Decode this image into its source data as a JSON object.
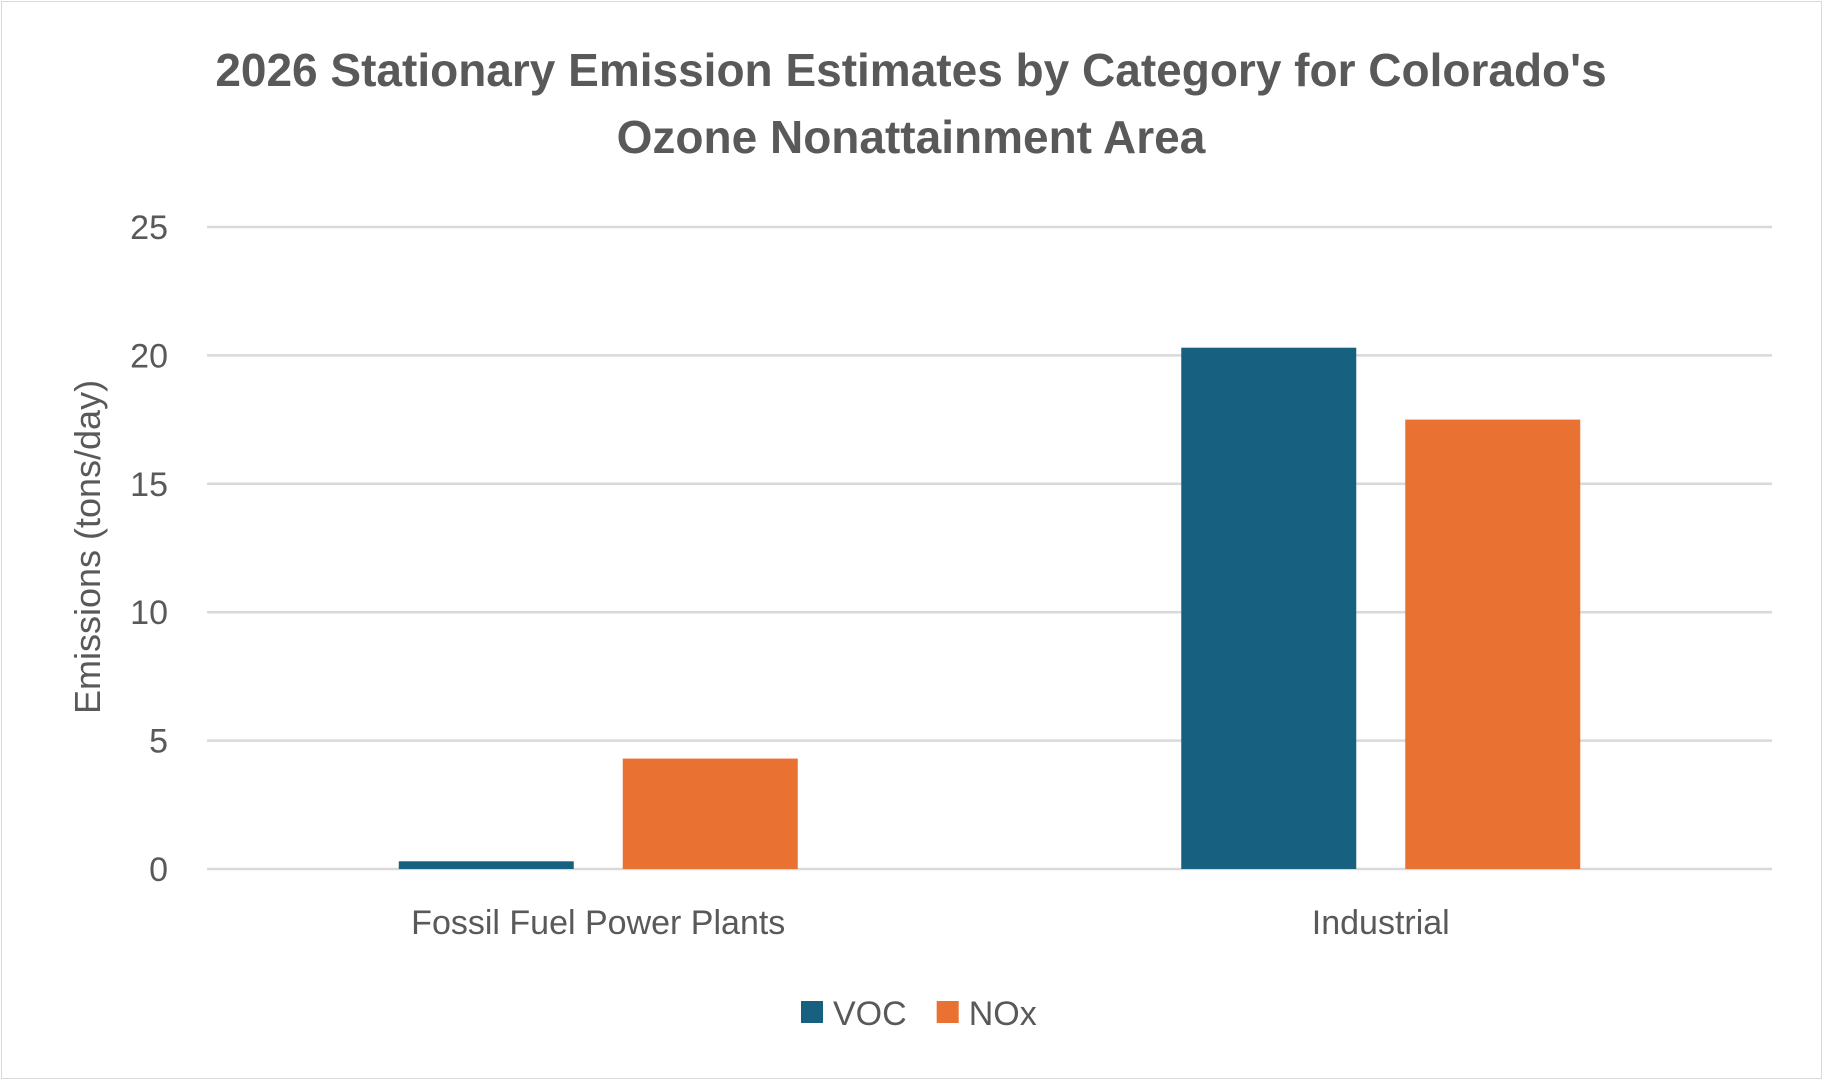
{
  "chart_data": {
    "type": "bar",
    "title_lines": [
      "2026 Stationary Emission Estimates by Category for Colorado's",
      "Ozone Nonattainment Area"
    ],
    "xlabel": "",
    "ylabel": "Emissions (tons/day)",
    "categories": [
      "Fossil Fuel Power Plants",
      "Industrial"
    ],
    "series": [
      {
        "name": "VOC",
        "color": "#17607f",
        "values": [
          0.3,
          20.3
        ]
      },
      {
        "name": "NOx",
        "color": "#e97132",
        "values": [
          4.3,
          17.5
        ]
      }
    ],
    "ylim": [
      0,
      25
    ],
    "yticks": [
      0,
      5,
      10,
      15,
      20,
      25
    ],
    "grid": true,
    "legend_position": "bottom"
  }
}
